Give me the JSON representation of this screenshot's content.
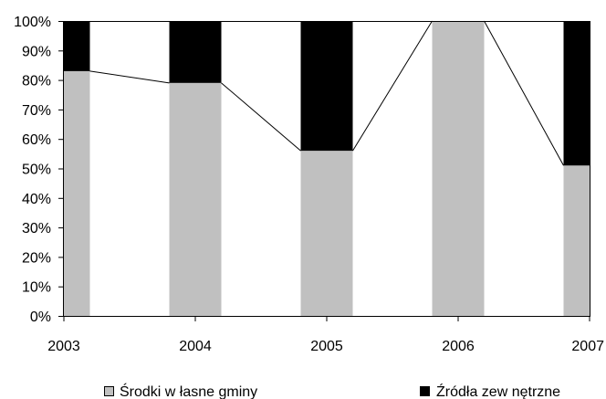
{
  "chart_data": {
    "type": "bar",
    "stacked": true,
    "percent_stacked": true,
    "categories": [
      "2003",
      "2004",
      "2005",
      "2006",
      "2007"
    ],
    "series": [
      {
        "name": "Środki w łasne gminy",
        "values": [
          83,
          79,
          56,
          100,
          51
        ],
        "color": "#c0c0c0"
      },
      {
        "name": "Źródła zew nętrzne",
        "values": [
          17,
          21,
          44,
          0,
          49
        ],
        "color": "#000000"
      }
    ],
    "series_lines": true,
    "y_ticks": [
      "0%",
      "10%",
      "20%",
      "30%",
      "40%",
      "50%",
      "60%",
      "70%",
      "80%",
      "90%",
      "100%"
    ],
    "ylim": [
      0,
      100
    ],
    "grid": false,
    "legend_position": "bottom"
  }
}
